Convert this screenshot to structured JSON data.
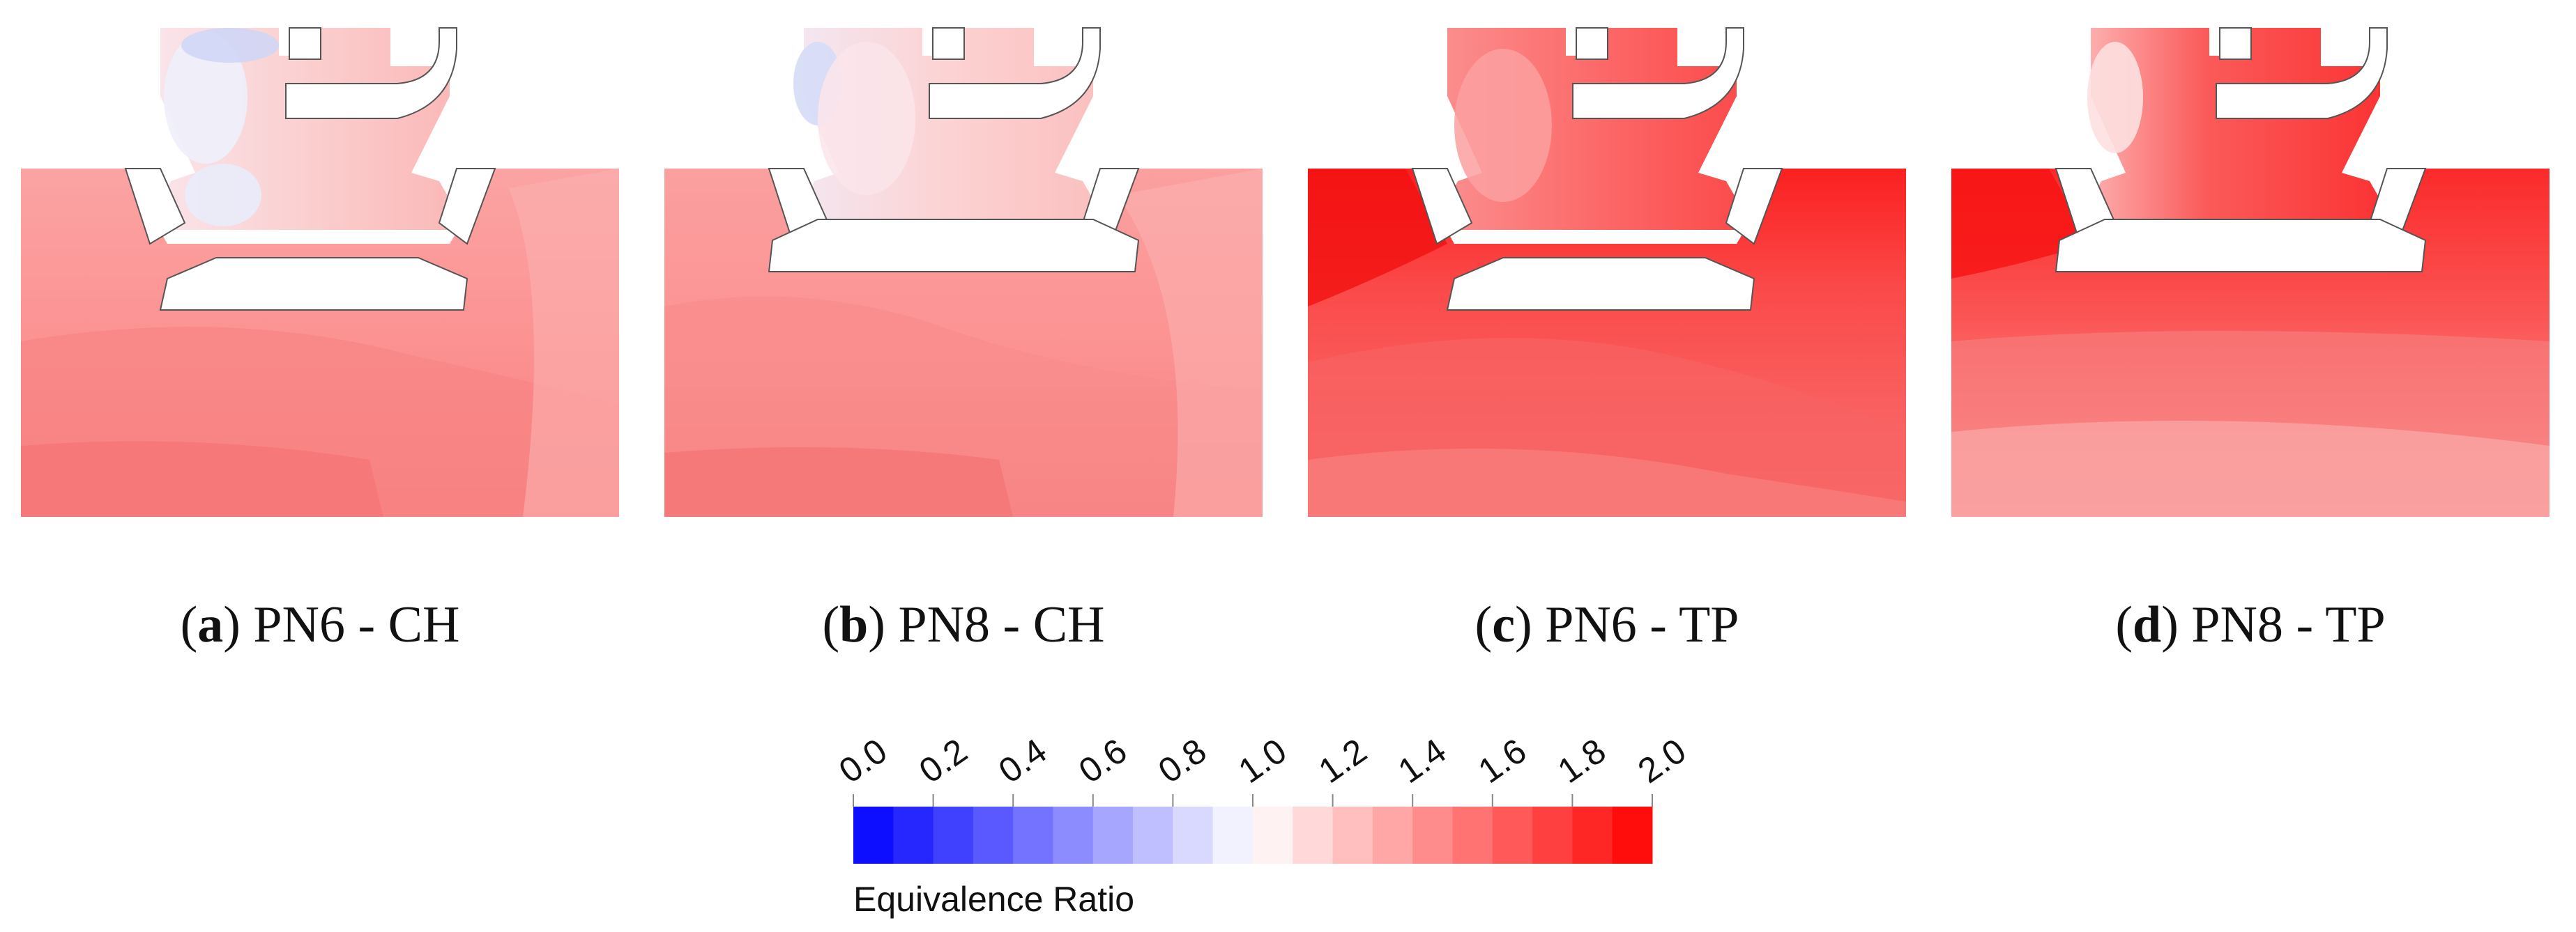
{
  "panels": [
    {
      "letter": "a",
      "label": "PN6 - CH",
      "scheme": "ch6"
    },
    {
      "letter": "b",
      "label": "PN8 - CH",
      "scheme": "ch8"
    },
    {
      "letter": "c",
      "label": "PN6 - TP",
      "scheme": "tp6"
    },
    {
      "letter": "d",
      "label": "PN8 - TP",
      "scheme": "tp8"
    }
  ],
  "legend": {
    "title": "Equivalence Ratio",
    "ticks": [
      "0.0",
      "0.2",
      "0.4",
      "0.6",
      "0.8",
      "1.0",
      "1.2",
      "1.4",
      "1.6",
      "1.8",
      "2.0"
    ],
    "range": [
      0.0,
      2.0
    ],
    "bands": 20,
    "colors": {
      "low": "#0000ff",
      "mid": "#ffffff",
      "high": "#ff0000"
    }
  }
}
